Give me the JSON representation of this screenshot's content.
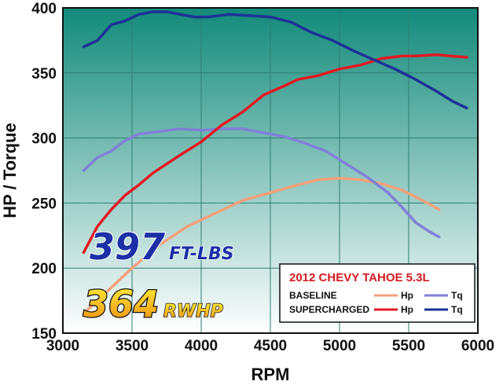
{
  "chart_data": {
    "type": "line",
    "xlabel": "RPM",
    "ylabel": "HP / Torque",
    "xlim": [
      3000,
      6000
    ],
    "ylim": [
      150,
      400
    ],
    "xticks": [
      "3000",
      "3500",
      "4000",
      "4500",
      "5000",
      "5500",
      "6000"
    ],
    "yticks": [
      "150",
      "200",
      "250",
      "300",
      "350",
      "400"
    ],
    "grid": true,
    "series": [
      {
        "key": "baseline_hp",
        "color": "#f4a07a",
        "x": [
          3150,
          3300,
          3500,
          3700,
          3900,
          4100,
          4300,
          4500,
          4700,
          4850,
          5000,
          5150,
          5300,
          5450,
          5600,
          5720
        ],
        "y": [
          165,
          180,
          200,
          218,
          232,
          242,
          252,
          258,
          264,
          268,
          269,
          268,
          265,
          260,
          252,
          245
        ]
      },
      {
        "key": "baseline_tq",
        "color": "#8080d8",
        "x": [
          3150,
          3250,
          3350,
          3450,
          3550,
          3700,
          3850,
          4000,
          4150,
          4300,
          4450,
          4600,
          4750,
          4900,
          5050,
          5200,
          5350,
          5450,
          5550,
          5650,
          5720
        ],
        "y": [
          275,
          285,
          290,
          298,
          303,
          305,
          307,
          306,
          307,
          307,
          304,
          301,
          296,
          290,
          280,
          270,
          258,
          247,
          235,
          228,
          224
        ]
      },
      {
        "key": "supercharged_hp",
        "color": "#e01b24",
        "x": [
          3150,
          3250,
          3350,
          3450,
          3550,
          3650,
          3750,
          3850,
          4000,
          4150,
          4300,
          4450,
          4600,
          4700,
          4850,
          5000,
          5150,
          5300,
          5450,
          5550,
          5700,
          5800,
          5920
        ],
        "y": [
          212,
          232,
          245,
          256,
          264,
          273,
          280,
          287,
          297,
          310,
          320,
          333,
          340,
          345,
          348,
          353,
          356,
          361,
          363,
          363,
          364,
          363,
          362
        ]
      },
      {
        "key": "supercharged_tq",
        "color": "#1c3296",
        "x": [
          3150,
          3250,
          3350,
          3450,
          3550,
          3650,
          3750,
          3850,
          3950,
          4050,
          4200,
          4350,
          4500,
          4650,
          4800,
          4950,
          5100,
          5250,
          5400,
          5550,
          5700,
          5820,
          5920
        ],
        "y": [
          370,
          375,
          387,
          390,
          395,
          397,
          397,
          395,
          393,
          393,
          395,
          394,
          393,
          389,
          381,
          375,
          367,
          360,
          353,
          345,
          336,
          328,
          323
        ]
      }
    ],
    "legend": {
      "title": "2012 CHEVY TAHOE 5.3L",
      "rows": [
        {
          "label": "BASELINE",
          "items": [
            {
              "series": "baseline_hp",
              "label": "Hp"
            },
            {
              "series": "baseline_tq",
              "label": "Tq"
            }
          ]
        },
        {
          "label": "SUPERCHARGED",
          "items": [
            {
              "series": "supercharged_hp",
              "label": "Hp"
            },
            {
              "series": "supercharged_tq",
              "label": "Tq"
            }
          ]
        }
      ],
      "position": "bottom-right"
    },
    "annotations": {
      "torque_value": "397",
      "torque_unit": "FT-LBS",
      "hp_value": "364",
      "hp_unit": "RWHP"
    }
  },
  "colors": {
    "plot_top": "#128a7a",
    "plot_bottom": "#ffffff",
    "grid": "#2e7e70",
    "legend_title": "#d41a1f",
    "gold_light": "#fff23a",
    "gold_dark": "#f08a10"
  }
}
